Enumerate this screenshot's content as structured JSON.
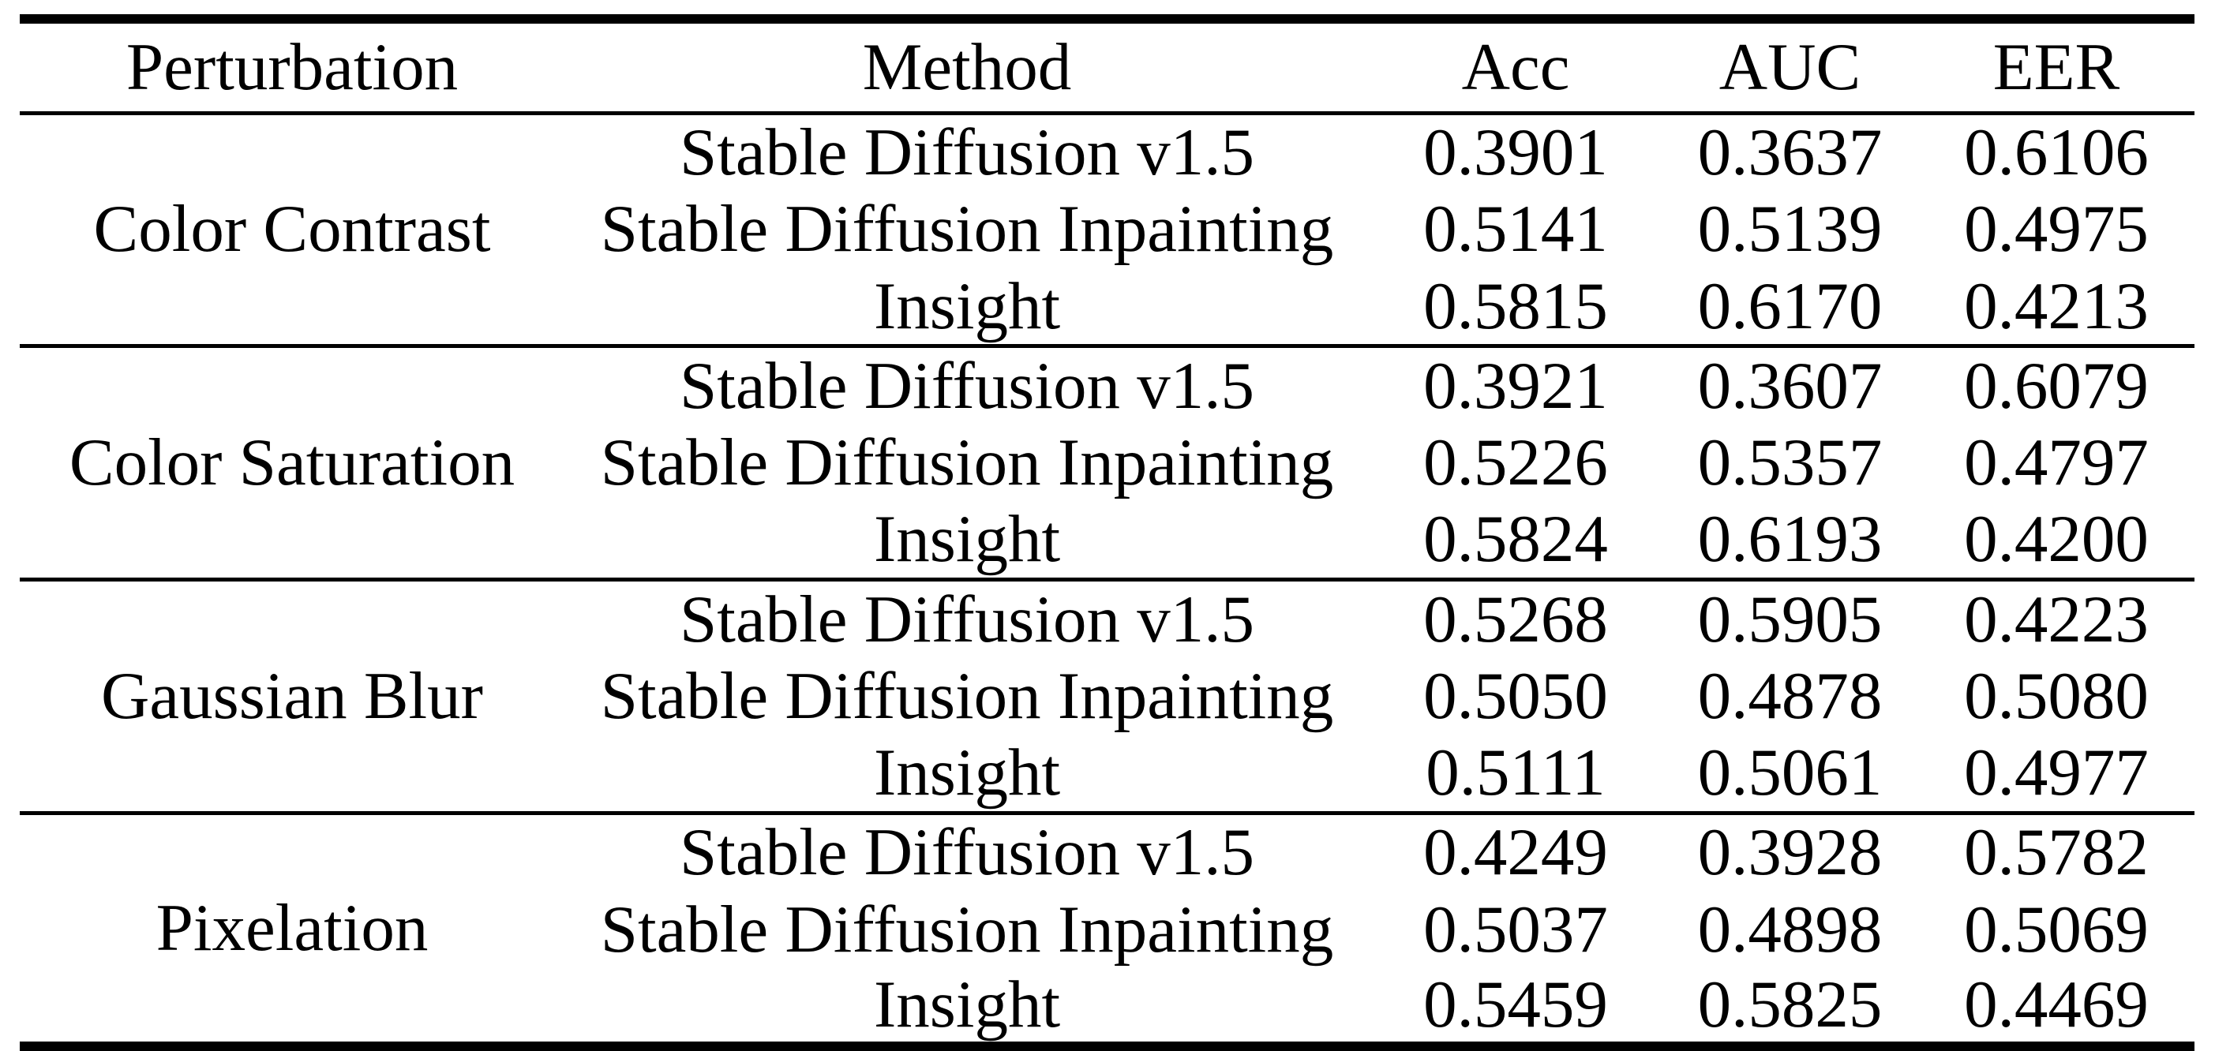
{
  "table": {
    "columns": [
      "Perturbation",
      "Method",
      "Acc",
      "AUC",
      "EER"
    ],
    "groups": [
      {
        "perturbation": "Color Contrast",
        "rows": [
          {
            "method": "Stable Diffusion v1.5",
            "acc": "0.3901",
            "auc": "0.3637",
            "eer": "0.6106"
          },
          {
            "method": "Stable Diffusion Inpainting",
            "acc": "0.5141",
            "auc": "0.5139",
            "eer": "0.4975"
          },
          {
            "method": "Insight",
            "acc": "0.5815",
            "auc": "0.6170",
            "eer": "0.4213"
          }
        ]
      },
      {
        "perturbation": "Color Saturation",
        "rows": [
          {
            "method": "Stable Diffusion v1.5",
            "acc": "0.3921",
            "auc": "0.3607",
            "eer": "0.6079"
          },
          {
            "method": "Stable Diffusion Inpainting",
            "acc": "0.5226",
            "auc": "0.5357",
            "eer": "0.4797"
          },
          {
            "method": "Insight",
            "acc": "0.5824",
            "auc": "0.6193",
            "eer": "0.4200"
          }
        ]
      },
      {
        "perturbation": "Gaussian Blur",
        "rows": [
          {
            "method": "Stable Diffusion v1.5",
            "acc": "0.5268",
            "auc": "0.5905",
            "eer": "0.4223"
          },
          {
            "method": "Stable Diffusion Inpainting",
            "acc": "0.5050",
            "auc": "0.4878",
            "eer": "0.5080"
          },
          {
            "method": "Insight",
            "acc": "0.5111",
            "auc": "0.5061",
            "eer": "0.4977"
          }
        ]
      },
      {
        "perturbation": "Pixelation",
        "rows": [
          {
            "method": "Stable Diffusion v1.5",
            "acc": "0.4249",
            "auc": "0.3928",
            "eer": "0.5782"
          },
          {
            "method": "Stable Diffusion Inpainting",
            "acc": "0.5037",
            "auc": "0.4898",
            "eer": "0.5069"
          },
          {
            "method": "Insight",
            "acc": "0.5459",
            "auc": "0.5825",
            "eer": "0.4469"
          }
        ]
      }
    ]
  },
  "colors": {
    "text": "#000000",
    "background": "#ffffff",
    "rule": "#000000"
  }
}
